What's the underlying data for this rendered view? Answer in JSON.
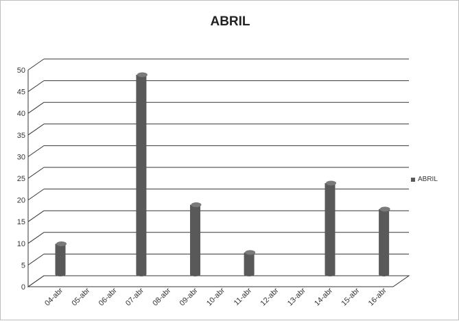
{
  "chart_data": {
    "type": "bar",
    "title": "ABRIL",
    "categories": [
      "04-abr",
      "05-abr",
      "06-abr",
      "07-abr",
      "08-abr",
      "09-abr",
      "10-abr",
      "11-abr",
      "12-abr",
      "13-abr",
      "14-abr",
      "15-abr",
      "16-abr"
    ],
    "series": [
      {
        "name": "ABRIL",
        "values": [
          8,
          0,
          0,
          47,
          0,
          17,
          0,
          6,
          0,
          0,
          22,
          0,
          16
        ]
      }
    ],
    "yticks": [
      0,
      5,
      10,
      15,
      20,
      25,
      30,
      35,
      40,
      45,
      50
    ],
    "ylim": [
      0,
      50
    ],
    "xlabel": "",
    "ylabel": "",
    "grid": true,
    "legend_position": "right",
    "bar_style": "3d-cylinder",
    "colors": {
      "bar": "#595959",
      "bar_top": "#7a7a7a",
      "grid": "#333333"
    }
  }
}
